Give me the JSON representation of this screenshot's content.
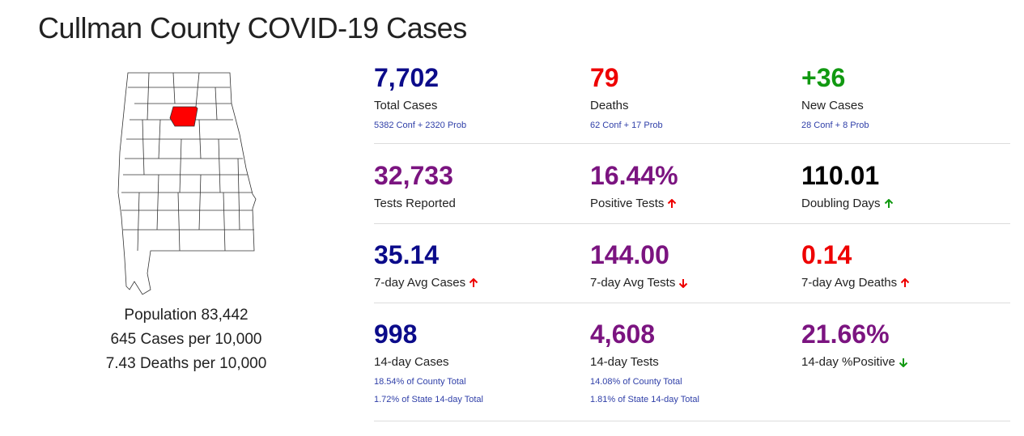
{
  "page_title": "Cullman County COVID-19 Cases",
  "colors": {
    "navy": "#0b0b8a",
    "red": "#ee0000",
    "green": "#119911",
    "purple": "#7b1480",
    "black": "#000000",
    "link": "#2f3fa8"
  },
  "county_panel": {
    "map_icon": "alabama-map-icon",
    "highlighted_county": "Cullman",
    "population": "Population 83,442",
    "cases_per_10k": "645 Cases per 10,000",
    "deaths_per_10k": "7.43 Deaths per 10,000"
  },
  "rows": [
    [
      {
        "value": "7,702",
        "label": "Total Cases",
        "color": "navy",
        "sub1": "5382 Conf + 2320 Prob"
      },
      {
        "value": "79",
        "label": "Deaths",
        "color": "red",
        "sub1": "62 Conf + 17 Prob"
      },
      {
        "value": "+36",
        "label": "New Cases",
        "color": "green",
        "sub1": "28 Conf + 8 Prob"
      }
    ],
    [
      {
        "value": "32,733",
        "label": "Tests Reported",
        "color": "purple"
      },
      {
        "value": "16.44%",
        "label": "Positive Tests",
        "color": "purple",
        "trend": "up",
        "trend_color": "red"
      },
      {
        "value": "110.01",
        "label": "Doubling Days",
        "color": "black",
        "trend": "up",
        "trend_color": "green"
      }
    ],
    [
      {
        "value": "35.14",
        "label": "7-day Avg Cases",
        "color": "navy",
        "trend": "up",
        "trend_color": "red"
      },
      {
        "value": "144.00",
        "label": "7-day Avg Tests",
        "color": "purple",
        "trend": "down",
        "trend_color": "red"
      },
      {
        "value": "0.14",
        "label": "7-day Avg Deaths",
        "color": "red",
        "trend": "up",
        "trend_color": "red"
      }
    ],
    [
      {
        "value": "998",
        "label": "14-day Cases",
        "color": "navy",
        "sub1": "18.54% of County Total",
        "sub2": "1.72% of State 14-day Total"
      },
      {
        "value": "4,608",
        "label": "14-day Tests",
        "color": "purple",
        "sub1": "14.08% of County Total",
        "sub2": "1.81% of State 14-day Total"
      },
      {
        "value": "21.66%",
        "label": "14-day %Positive",
        "color": "purple",
        "trend": "down",
        "trend_color": "green"
      }
    ]
  ]
}
